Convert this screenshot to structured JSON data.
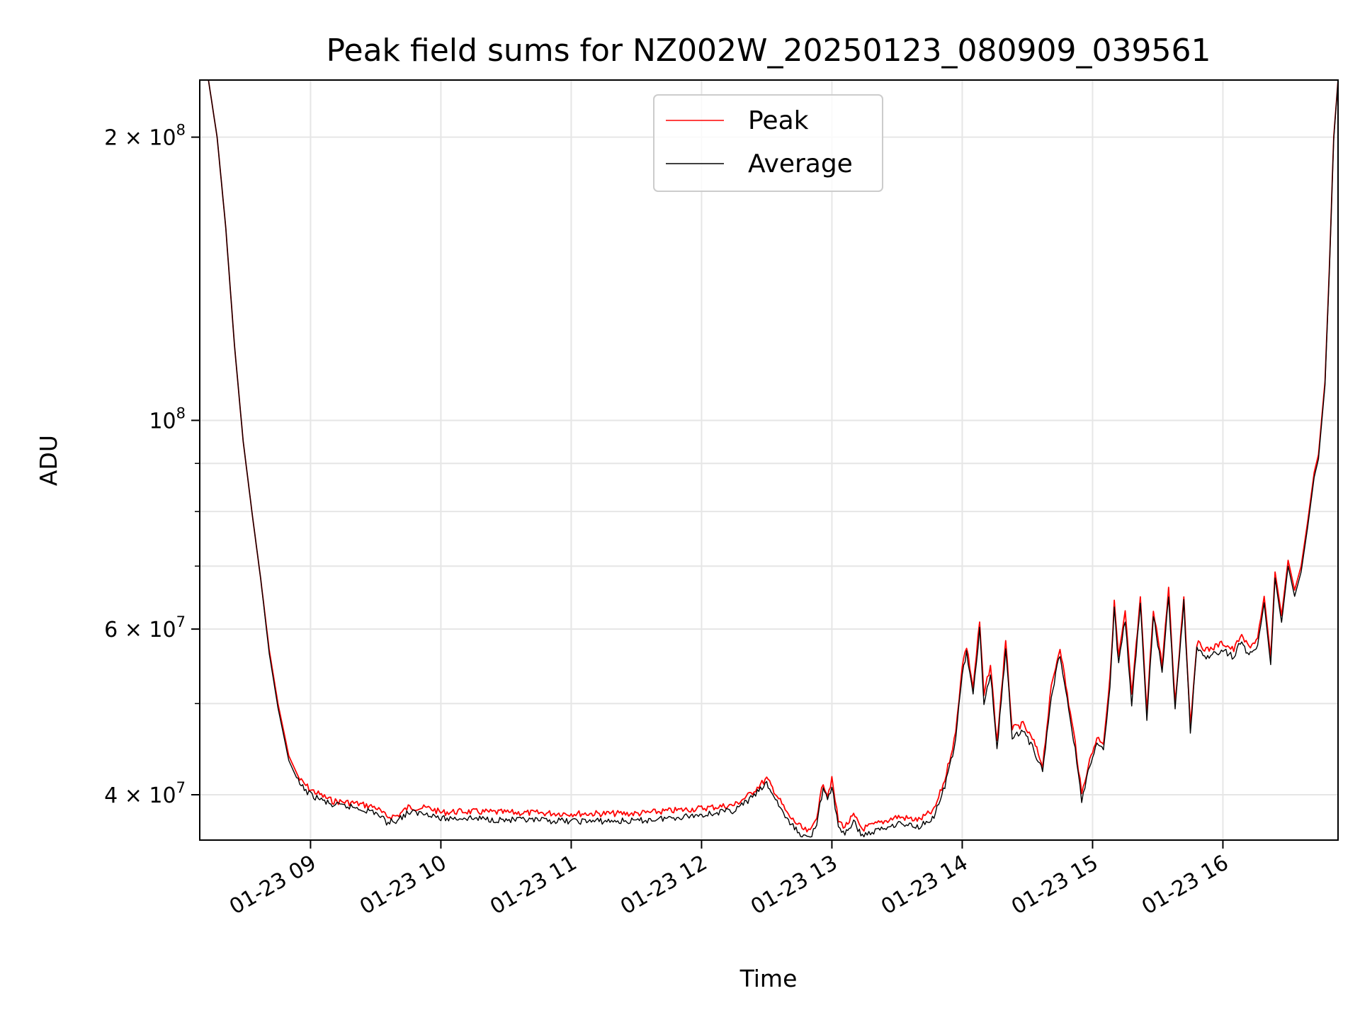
{
  "chart_data": {
    "type": "line",
    "title": "Peak field sums for NZ002W_20250123_080909_039561",
    "xlabel": "Time",
    "ylabel": "ADU",
    "y_scale": "log",
    "ylim": [
      35800000,
      230000000
    ],
    "xlim": [
      "2025-01-23 08:09",
      "2025-01-23 16:53"
    ],
    "grid": true,
    "legend_position": "upper-center",
    "x_ticks": [
      {
        "time": "2025-01-23 09:00",
        "label": "01-23 09"
      },
      {
        "time": "2025-01-23 10:00",
        "label": "01-23 10"
      },
      {
        "time": "2025-01-23 11:00",
        "label": "01-23 11"
      },
      {
        "time": "2025-01-23 12:00",
        "label": "01-23 12"
      },
      {
        "time": "2025-01-23 13:00",
        "label": "01-23 13"
      },
      {
        "time": "2025-01-23 14:00",
        "label": "01-23 14"
      },
      {
        "time": "2025-01-23 15:00",
        "label": "01-23 15"
      },
      {
        "time": "2025-01-23 16:00",
        "label": "01-23 16"
      }
    ],
    "y_ticks": [
      {
        "value": 40000000,
        "base": "4 × 10",
        "exp": "7"
      },
      {
        "value": 60000000,
        "base": "6 × 10",
        "exp": "7"
      },
      {
        "value": 100000000,
        "base": "10",
        "exp": "8"
      },
      {
        "value": 200000000,
        "base": "2 × 10",
        "exp": "8"
      }
    ],
    "y_minor_ticks": [
      50000000,
      70000000,
      80000000,
      90000000
    ],
    "series": [
      {
        "name": "Peak",
        "color": "#ff0000",
        "points": [
          [
            "2025-01-23 08:09",
            230000000
          ],
          [
            "2025-01-23 08:13",
            230000000
          ],
          [
            "2025-01-23 08:17",
            200000000
          ],
          [
            "2025-01-23 08:21",
            160000000
          ],
          [
            "2025-01-23 08:25",
            120000000
          ],
          [
            "2025-01-23 08:29",
            95000000
          ],
          [
            "2025-01-23 08:33",
            80000000
          ],
          [
            "2025-01-23 08:37",
            68000000
          ],
          [
            "2025-01-23 08:41",
            57000000
          ],
          [
            "2025-01-23 08:45",
            50000000
          ],
          [
            "2025-01-23 08:50",
            44000000
          ],
          [
            "2025-01-23 08:55",
            41500000
          ],
          [
            "2025-01-23 09:00",
            40500000
          ],
          [
            "2025-01-23 09:10",
            39400000
          ],
          [
            "2025-01-23 09:20",
            39200000
          ],
          [
            "2025-01-23 09:30",
            38800000
          ],
          [
            "2025-01-23 09:35",
            37900000
          ],
          [
            "2025-01-23 09:40",
            38000000
          ],
          [
            "2025-01-23 09:45",
            38800000
          ],
          [
            "2025-01-23 09:55",
            38700000
          ],
          [
            "2025-01-23 10:00",
            38300000
          ],
          [
            "2025-01-23 10:10",
            38400000
          ],
          [
            "2025-01-23 10:30",
            38300000
          ],
          [
            "2025-01-23 11:00",
            38200000
          ],
          [
            "2025-01-23 11:30",
            38200000
          ],
          [
            "2025-01-23 12:00",
            38700000
          ],
          [
            "2025-01-23 12:15",
            39000000
          ],
          [
            "2025-01-23 12:22",
            40000000
          ],
          [
            "2025-01-23 12:30",
            41600000
          ],
          [
            "2025-01-23 12:34",
            40200000
          ],
          [
            "2025-01-23 12:40",
            38000000
          ],
          [
            "2025-01-23 12:47",
            36700000
          ],
          [
            "2025-01-23 12:50",
            36500000
          ],
          [
            "2025-01-23 12:53",
            38000000
          ],
          [
            "2025-01-23 12:56",
            41200000
          ],
          [
            "2025-01-23 12:58",
            40000000
          ],
          [
            "2025-01-23 13:00",
            41500000
          ],
          [
            "2025-01-23 13:03",
            37500000
          ],
          [
            "2025-01-23 13:06",
            37000000
          ],
          [
            "2025-01-23 13:10",
            38000000
          ],
          [
            "2025-01-23 13:14",
            36800000
          ],
          [
            "2025-01-23 13:20",
            37200000
          ],
          [
            "2025-01-23 13:30",
            37900000
          ],
          [
            "2025-01-23 13:40",
            37600000
          ],
          [
            "2025-01-23 13:47",
            38500000
          ],
          [
            "2025-01-23 13:52",
            41500000
          ],
          [
            "2025-01-23 13:57",
            46500000
          ],
          [
            "2025-01-23 14:00",
            55000000
          ],
          [
            "2025-01-23 14:02",
            57500000
          ],
          [
            "2025-01-23 14:05",
            52000000
          ],
          [
            "2025-01-23 14:08",
            61000000
          ],
          [
            "2025-01-23 14:10",
            51000000
          ],
          [
            "2025-01-23 14:13",
            55000000
          ],
          [
            "2025-01-23 14:16",
            45500000
          ],
          [
            "2025-01-23 14:20",
            58000000
          ],
          [
            "2025-01-23 14:23",
            47000000
          ],
          [
            "2025-01-23 14:28",
            47500000
          ],
          [
            "2025-01-23 14:33",
            45500000
          ],
          [
            "2025-01-23 14:37",
            43000000
          ],
          [
            "2025-01-23 14:41",
            52000000
          ],
          [
            "2025-01-23 14:45",
            57500000
          ],
          [
            "2025-01-23 14:49",
            50000000
          ],
          [
            "2025-01-23 14:52",
            45500000
          ],
          [
            "2025-01-23 14:55",
            40000000
          ],
          [
            "2025-01-23 14:58",
            43000000
          ],
          [
            "2025-01-23 15:02",
            46000000
          ],
          [
            "2025-01-23 15:05",
            45500000
          ],
          [
            "2025-01-23 15:08",
            53000000
          ],
          [
            "2025-01-23 15:10",
            64000000
          ],
          [
            "2025-01-23 15:12",
            56000000
          ],
          [
            "2025-01-23 15:15",
            62500000
          ],
          [
            "2025-01-23 15:18",
            51000000
          ],
          [
            "2025-01-23 15:22",
            64500000
          ],
          [
            "2025-01-23 15:25",
            49000000
          ],
          [
            "2025-01-23 15:28",
            63000000
          ],
          [
            "2025-01-23 15:32",
            55000000
          ],
          [
            "2025-01-23 15:35",
            66000000
          ],
          [
            "2025-01-23 15:38",
            50000000
          ],
          [
            "2025-01-23 15:42",
            65000000
          ],
          [
            "2025-01-23 15:45",
            47500000
          ],
          [
            "2025-01-23 15:48",
            58000000
          ],
          [
            "2025-01-23 15:53",
            57000000
          ],
          [
            "2025-01-23 16:00",
            58000000
          ],
          [
            "2025-01-23 16:05",
            57000000
          ],
          [
            "2025-01-23 16:08",
            59000000
          ],
          [
            "2025-01-23 16:12",
            57500000
          ],
          [
            "2025-01-23 16:16",
            58500000
          ],
          [
            "2025-01-23 16:19",
            65000000
          ],
          [
            "2025-01-23 16:22",
            56000000
          ],
          [
            "2025-01-23 16:24",
            69000000
          ],
          [
            "2025-01-23 16:27",
            62000000
          ],
          [
            "2025-01-23 16:30",
            71000000
          ],
          [
            "2025-01-23 16:33",
            66000000
          ],
          [
            "2025-01-23 16:36",
            70000000
          ],
          [
            "2025-01-23 16:39",
            78000000
          ],
          [
            "2025-01-23 16:42",
            88000000
          ],
          [
            "2025-01-23 16:44",
            92000000
          ],
          [
            "2025-01-23 16:47",
            110000000
          ],
          [
            "2025-01-23 16:49",
            145000000
          ],
          [
            "2025-01-23 16:51",
            200000000
          ],
          [
            "2025-01-23 16:53",
            230000000
          ]
        ]
      },
      {
        "name": "Average",
        "color": "#000000",
        "points": [
          [
            "2025-01-23 08:09",
            230000000
          ],
          [
            "2025-01-23 08:13",
            230000000
          ],
          [
            "2025-01-23 08:17",
            200000000
          ],
          [
            "2025-01-23 08:21",
            160000000
          ],
          [
            "2025-01-23 08:25",
            120000000
          ],
          [
            "2025-01-23 08:29",
            95000000
          ],
          [
            "2025-01-23 08:33",
            80000000
          ],
          [
            "2025-01-23 08:37",
            68000000
          ],
          [
            "2025-01-23 08:41",
            56500000
          ],
          [
            "2025-01-23 08:45",
            49500000
          ],
          [
            "2025-01-23 08:50",
            43500000
          ],
          [
            "2025-01-23 08:55",
            41000000
          ],
          [
            "2025-01-23 09:00",
            40000000
          ],
          [
            "2025-01-23 09:10",
            39000000
          ],
          [
            "2025-01-23 09:20",
            38800000
          ],
          [
            "2025-01-23 09:30",
            38300000
          ],
          [
            "2025-01-23 09:35",
            37400000
          ],
          [
            "2025-01-23 09:40",
            37600000
          ],
          [
            "2025-01-23 09:45",
            38300000
          ],
          [
            "2025-01-23 09:55",
            38200000
          ],
          [
            "2025-01-23 10:00",
            37700000
          ],
          [
            "2025-01-23 10:10",
            37800000
          ],
          [
            "2025-01-23 10:30",
            37600000
          ],
          [
            "2025-01-23 11:00",
            37500000
          ],
          [
            "2025-01-23 11:30",
            37500000
          ],
          [
            "2025-01-23 12:00",
            38100000
          ],
          [
            "2025-01-23 12:15",
            38500000
          ],
          [
            "2025-01-23 12:22",
            39500000
          ],
          [
            "2025-01-23 12:30",
            41100000
          ],
          [
            "2025-01-23 12:34",
            39600000
          ],
          [
            "2025-01-23 12:40",
            37400000
          ],
          [
            "2025-01-23 12:47",
            36100000
          ],
          [
            "2025-01-23 12:50",
            36000000
          ],
          [
            "2025-01-23 12:53",
            37400000
          ],
          [
            "2025-01-23 12:56",
            40600000
          ],
          [
            "2025-01-23 12:58",
            39400000
          ],
          [
            "2025-01-23 13:00",
            40900000
          ],
          [
            "2025-01-23 13:03",
            36900000
          ],
          [
            "2025-01-23 13:06",
            36400000
          ],
          [
            "2025-01-23 13:10",
            37400000
          ],
          [
            "2025-01-23 13:14",
            36200000
          ],
          [
            "2025-01-23 13:20",
            36600000
          ],
          [
            "2025-01-23 13:30",
            37300000
          ],
          [
            "2025-01-23 13:40",
            37000000
          ],
          [
            "2025-01-23 13:47",
            37900000
          ],
          [
            "2025-01-23 13:52",
            40800000
          ],
          [
            "2025-01-23 13:57",
            45700000
          ],
          [
            "2025-01-23 14:00",
            54000000
          ],
          [
            "2025-01-23 14:02",
            56500000
          ],
          [
            "2025-01-23 14:05",
            51000000
          ],
          [
            "2025-01-23 14:08",
            60000000
          ],
          [
            "2025-01-23 14:10",
            50000000
          ],
          [
            "2025-01-23 14:13",
            54000000
          ],
          [
            "2025-01-23 14:16",
            44700000
          ],
          [
            "2025-01-23 14:20",
            57000000
          ],
          [
            "2025-01-23 14:23",
            46200000
          ],
          [
            "2025-01-23 14:28",
            46700000
          ],
          [
            "2025-01-23 14:33",
            44700000
          ],
          [
            "2025-01-23 14:37",
            42300000
          ],
          [
            "2025-01-23 14:41",
            51000000
          ],
          [
            "2025-01-23 14:45",
            56500000
          ],
          [
            "2025-01-23 14:49",
            49200000
          ],
          [
            "2025-01-23 14:52",
            44700000
          ],
          [
            "2025-01-23 14:55",
            39400000
          ],
          [
            "2025-01-23 14:58",
            42300000
          ],
          [
            "2025-01-23 15:02",
            45200000
          ],
          [
            "2025-01-23 15:05",
            44700000
          ],
          [
            "2025-01-23 15:08",
            52000000
          ],
          [
            "2025-01-23 15:10",
            63000000
          ],
          [
            "2025-01-23 15:12",
            55000000
          ],
          [
            "2025-01-23 15:15",
            61500000
          ],
          [
            "2025-01-23 15:18",
            50000000
          ],
          [
            "2025-01-23 15:22",
            63500000
          ],
          [
            "2025-01-23 15:25",
            48200000
          ],
          [
            "2025-01-23 15:28",
            62000000
          ],
          [
            "2025-01-23 15:32",
            54000000
          ],
          [
            "2025-01-23 15:35",
            65000000
          ],
          [
            "2025-01-23 15:38",
            49200000
          ],
          [
            "2025-01-23 15:42",
            64000000
          ],
          [
            "2025-01-23 15:45",
            46700000
          ],
          [
            "2025-01-23 15:48",
            57000000
          ],
          [
            "2025-01-23 15:53",
            56000000
          ],
          [
            "2025-01-23 16:00",
            57000000
          ],
          [
            "2025-01-23 16:05",
            56000000
          ],
          [
            "2025-01-23 16:08",
            58000000
          ],
          [
            "2025-01-23 16:12",
            56500000
          ],
          [
            "2025-01-23 16:16",
            57500000
          ],
          [
            "2025-01-23 16:19",
            64000000
          ],
          [
            "2025-01-23 16:22",
            55000000
          ],
          [
            "2025-01-23 16:24",
            68000000
          ],
          [
            "2025-01-23 16:27",
            61000000
          ],
          [
            "2025-01-23 16:30",
            70000000
          ],
          [
            "2025-01-23 16:33",
            65000000
          ],
          [
            "2025-01-23 16:36",
            69000000
          ],
          [
            "2025-01-23 16:39",
            77000000
          ],
          [
            "2025-01-23 16:42",
            87000000
          ],
          [
            "2025-01-23 16:44",
            91000000
          ],
          [
            "2025-01-23 16:47",
            109000000
          ],
          [
            "2025-01-23 16:49",
            144000000
          ],
          [
            "2025-01-23 16:51",
            199000000
          ],
          [
            "2025-01-23 16:53",
            230000000
          ]
        ]
      }
    ]
  }
}
